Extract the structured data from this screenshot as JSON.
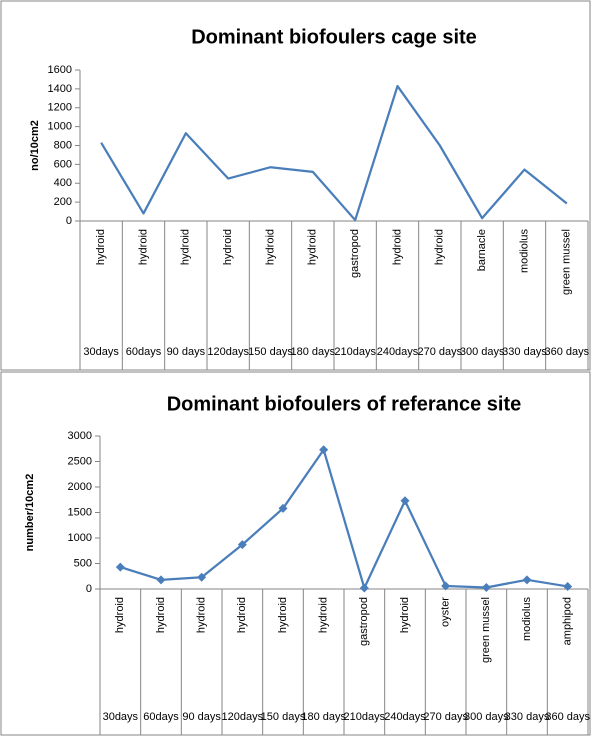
{
  "chart_data": [
    {
      "type": "line",
      "title": "Dominant biofoulers cage site",
      "y_label": "no/10cm2",
      "categories": [
        "hydroid",
        "hydroid",
        "hydroid",
        "hydroid",
        "hydroid",
        "hydroid",
        "gastropod",
        "hydroid",
        "hydroid",
        "barnacle",
        "modiolus",
        "green mussel"
      ],
      "days": [
        "30days",
        "60days",
        "90 days",
        "120days",
        "150 days",
        "180 days",
        "210days",
        "240days",
        "270 days",
        "300 days",
        "330 days",
        "360 days"
      ],
      "series": [
        {
          "name": "cage site",
          "color": "#4a7ebb",
          "marker": "none",
          "values": [
            830,
            80,
            930,
            450,
            570,
            520,
            10,
            1430,
            800,
            30,
            545,
            185
          ]
        }
      ],
      "ylim": [
        0,
        1600
      ],
      "yticks": [
        0,
        200,
        400,
        600,
        800,
        1000,
        1200,
        1400,
        1600
      ],
      "grid": false
    },
    {
      "type": "line",
      "title": "Dominant biofoulers of referance site",
      "y_label": "number/10cm2",
      "categories": [
        "hydroid",
        "hydroid",
        "hydroid",
        "hydroid",
        "hydroid",
        "hydroid",
        "gastropod",
        "hydroid",
        "oyster",
        "green mussel",
        "modiolus",
        "amphipod"
      ],
      "days": [
        "30days",
        "60days",
        "90 days",
        "120days",
        "150 days",
        "180 days",
        "210days",
        "240days",
        "270 days",
        "300 days",
        "330 days",
        "360 days"
      ],
      "series": [
        {
          "name": "referance site",
          "color": "#4a7ebb",
          "marker": "diamond",
          "values": [
            430,
            180,
            230,
            870,
            1580,
            2730,
            20,
            1730,
            60,
            30,
            180,
            50
          ]
        }
      ],
      "ylim": [
        0,
        3000
      ],
      "yticks": [
        0,
        500,
        1000,
        1500,
        2000,
        2500,
        3000
      ],
      "grid": false
    }
  ]
}
